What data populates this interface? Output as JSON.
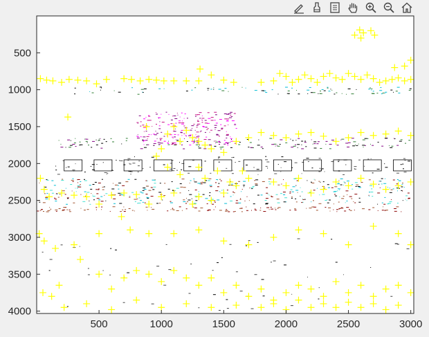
{
  "toolbar": {
    "buttons": [
      {
        "name": "brush-edit-icon"
      },
      {
        "name": "data-cursor-icon"
      },
      {
        "name": "export-icon"
      },
      {
        "name": "pan-hand-icon"
      },
      {
        "name": "zoom-in-icon"
      },
      {
        "name": "zoom-out-icon"
      },
      {
        "name": "home-icon"
      }
    ]
  },
  "colors": {
    "figure_bg": "#f0f0f0",
    "axes_bg": "#ffffff",
    "markers": "#ffff00",
    "axis": "#262626"
  },
  "chart_data": {
    "type": "scatter",
    "title": "",
    "xlabel": "",
    "ylabel": "",
    "xlim": [
      0,
      3024
    ],
    "ylim": [
      4032,
      0
    ],
    "y_reversed": true,
    "grid": false,
    "x_ticks": [
      "500",
      "1000",
      "1500",
      "2000",
      "2500",
      "3000"
    ],
    "y_ticks": [
      "500",
      "1000",
      "1500",
      "2000",
      "2500",
      "3000",
      "3500",
      "4000"
    ],
    "marker_series": {
      "name": "",
      "marker": "+",
      "color": "#ffff00",
      "points": [
        [
          2590,
          190
        ],
        [
          2620,
          230
        ],
        [
          2550,
          260
        ],
        [
          2680,
          200
        ],
        [
          2600,
          300
        ],
        [
          2710,
          260
        ],
        [
          30,
          850
        ],
        [
          80,
          870
        ],
        [
          130,
          880
        ],
        [
          200,
          900
        ],
        [
          260,
          860
        ],
        [
          330,
          870
        ],
        [
          400,
          880
        ],
        [
          480,
          920
        ],
        [
          560,
          860
        ],
        [
          700,
          850
        ],
        [
          760,
          860
        ],
        [
          830,
          880
        ],
        [
          900,
          860
        ],
        [
          960,
          870
        ],
        [
          1020,
          880
        ],
        [
          1100,
          880
        ],
        [
          1200,
          880
        ],
        [
          1300,
          880
        ],
        [
          1400,
          800
        ],
        [
          1500,
          870
        ],
        [
          1580,
          900
        ],
        [
          1800,
          900
        ],
        [
          1900,
          880
        ],
        [
          1950,
          780
        ],
        [
          2000,
          820
        ],
        [
          2050,
          900
        ],
        [
          2100,
          860
        ],
        [
          2150,
          800
        ],
        [
          2200,
          850
        ],
        [
          2250,
          900
        ],
        [
          2300,
          820
        ],
        [
          2350,
          780
        ],
        [
          2400,
          840
        ],
        [
          2450,
          860
        ],
        [
          2500,
          780
        ],
        [
          2550,
          820
        ],
        [
          2600,
          860
        ],
        [
          2650,
          800
        ],
        [
          2700,
          850
        ],
        [
          2750,
          900
        ],
        [
          2800,
          880
        ],
        [
          2850,
          860
        ],
        [
          2900,
          840
        ],
        [
          2950,
          880
        ],
        [
          3000,
          860
        ],
        [
          1310,
          720
        ],
        [
          2870,
          700
        ],
        [
          3000,
          600
        ],
        [
          2950,
          680
        ],
        [
          250,
          1370
        ],
        [
          880,
          1500
        ],
        [
          1200,
          1550
        ],
        [
          1250,
          1650
        ],
        [
          1300,
          1700
        ],
        [
          1350,
          1750
        ],
        [
          1400,
          1800
        ],
        [
          1500,
          1850
        ],
        [
          1600,
          1700
        ],
        [
          1700,
          1650
        ],
        [
          1800,
          1580
        ],
        [
          1900,
          1620
        ],
        [
          2000,
          1650
        ],
        [
          2100,
          1600
        ],
        [
          2200,
          1580
        ],
        [
          2300,
          1630
        ],
        [
          2400,
          1700
        ],
        [
          2500,
          1650
        ],
        [
          2600,
          1580
        ],
        [
          2700,
          1620
        ],
        [
          2800,
          1600
        ],
        [
          2900,
          1560
        ],
        [
          3000,
          1620
        ],
        [
          1050,
          1600
        ],
        [
          1100,
          1500
        ],
        [
          1150,
          1700
        ],
        [
          1000,
          1800
        ],
        [
          960,
          1900
        ],
        [
          1050,
          2050
        ],
        [
          1150,
          2150
        ],
        [
          1300,
          2050
        ],
        [
          1350,
          2200
        ],
        [
          1450,
          2100
        ],
        [
          1550,
          2250
        ],
        [
          1600,
          2300
        ],
        [
          1650,
          2100
        ],
        [
          1700,
          2200
        ],
        [
          1500,
          2400
        ],
        [
          1400,
          2500
        ],
        [
          1300,
          2450
        ],
        [
          1250,
          2550
        ],
        [
          1100,
          2400
        ],
        [
          1000,
          2450
        ],
        [
          900,
          2550
        ],
        [
          30,
          2200
        ],
        [
          60,
          2350
        ],
        [
          100,
          2450
        ],
        [
          200,
          2400
        ],
        [
          300,
          2430
        ],
        [
          400,
          2450
        ],
        [
          500,
          2550
        ],
        [
          600,
          2430
        ],
        [
          700,
          2400
        ],
        [
          800,
          2420
        ],
        [
          1900,
          2250
        ],
        [
          2000,
          2300
        ],
        [
          2100,
          2200
        ],
        [
          2200,
          2400
        ],
        [
          2300,
          2350
        ],
        [
          2400,
          2250
        ],
        [
          2500,
          2300
        ],
        [
          2600,
          2200
        ],
        [
          2700,
          2280
        ],
        [
          2800,
          2350
        ],
        [
          2900,
          2300
        ],
        [
          3000,
          2250
        ],
        [
          20,
          2950
        ],
        [
          60,
          3050
        ],
        [
          150,
          3150
        ],
        [
          300,
          3100
        ],
        [
          500,
          2950
        ],
        [
          680,
          2720
        ],
        [
          750,
          2900
        ],
        [
          900,
          2950
        ],
        [
          1100,
          2950
        ],
        [
          1300,
          2900
        ],
        [
          1500,
          3050
        ],
        [
          1700,
          3100
        ],
        [
          1900,
          3000
        ],
        [
          2100,
          2900
        ],
        [
          2300,
          2950
        ],
        [
          2500,
          3100
        ],
        [
          2700,
          2850
        ],
        [
          2900,
          2950
        ],
        [
          3000,
          3100
        ],
        [
          180,
          3650
        ],
        [
          350,
          3300
        ],
        [
          500,
          3500
        ],
        [
          600,
          3700
        ],
        [
          700,
          3550
        ],
        [
          800,
          3450
        ],
        [
          900,
          3500
        ],
        [
          1000,
          3600
        ],
        [
          1100,
          3450
        ],
        [
          1200,
          3550
        ],
        [
          1300,
          3650
        ],
        [
          1400,
          3550
        ],
        [
          1500,
          3750
        ],
        [
          1600,
          3650
        ],
        [
          1700,
          3800
        ],
        [
          1800,
          3700
        ],
        [
          1900,
          3850
        ],
        [
          2000,
          3750
        ],
        [
          2100,
          3650
        ],
        [
          2200,
          3700
        ],
        [
          2300,
          3800
        ],
        [
          2400,
          3600
        ],
        [
          2500,
          3750
        ],
        [
          2600,
          3650
        ],
        [
          2700,
          3800
        ],
        [
          2800,
          3700
        ],
        [
          2900,
          3650
        ],
        [
          3000,
          3750
        ],
        [
          1800,
          3950
        ],
        [
          1900,
          3900
        ],
        [
          2000,
          3980
        ],
        [
          2100,
          3850
        ],
        [
          2200,
          3950
        ],
        [
          2300,
          3900
        ],
        [
          2400,
          3950
        ],
        [
          2500,
          3880
        ],
        [
          2600,
          3950
        ],
        [
          2700,
          3900
        ],
        [
          2800,
          3980
        ],
        [
          2900,
          3920
        ],
        [
          50,
          3750
        ],
        [
          120,
          3800
        ],
        [
          220,
          3950
        ],
        [
          400,
          3900
        ],
        [
          600,
          3980
        ],
        [
          800,
          3850
        ],
        [
          1000,
          3950
        ],
        [
          1200,
          3900
        ],
        [
          1400,
          3950
        ],
        [
          1600,
          3920
        ]
      ]
    }
  }
}
